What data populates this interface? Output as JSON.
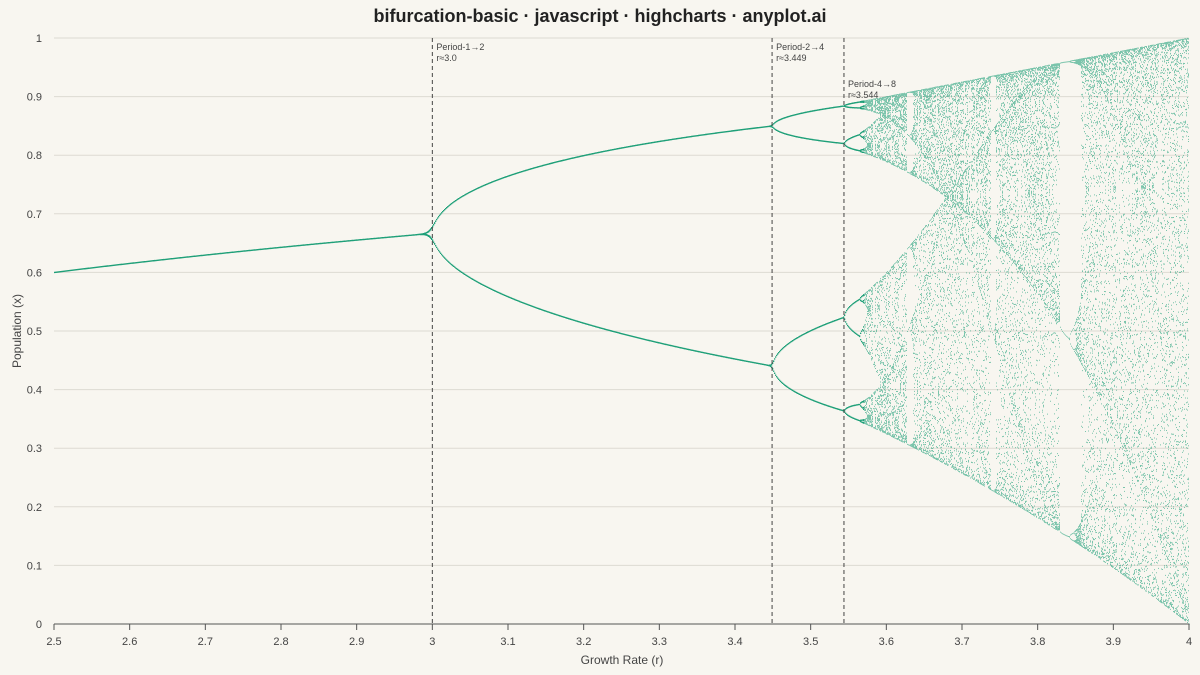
{
  "chart_data": {
    "type": "scatter",
    "title": "bifurcation-basic · javascript · highcharts · anyplot.ai",
    "xlabel": "Growth Rate (r)",
    "ylabel": "Population (x)",
    "xlim": [
      2.5,
      4.0
    ],
    "ylim": [
      0,
      1
    ],
    "x_ticks": [
      "2.5",
      "2.6",
      "2.7",
      "2.8",
      "2.9",
      "3",
      "3.1",
      "3.2",
      "3.3",
      "3.4",
      "3.5",
      "3.6",
      "3.7",
      "3.8",
      "3.9",
      "4"
    ],
    "y_ticks": [
      "0",
      "0.1",
      "0.2",
      "0.3",
      "0.4",
      "0.5",
      "0.6",
      "0.7",
      "0.8",
      "0.9",
      "1"
    ],
    "grid": "horizontal",
    "legend": "none",
    "series": [
      {
        "map": "logistic x(n+1) = r·x(n)·(1 − x(n))",
        "r_range": [
          2.5,
          4.0
        ],
        "color": "#139B72"
      }
    ],
    "annotations": [
      {
        "r": 3.0,
        "line1": "Period-1→2",
        "line2": "r≈3.0"
      },
      {
        "r": 3.449,
        "line1": "Period-2→4",
        "line2": "r≈3.449"
      },
      {
        "r": 3.544,
        "line1": "Period-4→8",
        "line2": "r≈3.544"
      }
    ]
  }
}
